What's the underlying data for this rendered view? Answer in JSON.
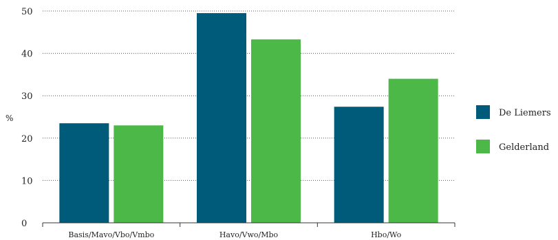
{
  "chart_data": {
    "type": "bar",
    "ylabel": "%",
    "ylim": [
      0,
      50
    ],
    "yticks": [
      0,
      10,
      20,
      30,
      40,
      50
    ],
    "grid": "horizontal-dotted",
    "legend_position": "right",
    "categories": [
      "Basis/Mavo/Vbo/Vmbo",
      "Havo/Vwo/Mbo",
      "Hbo/Wo"
    ],
    "series": [
      {
        "name": "De Liemers",
        "color": "#005a7a",
        "values": [
          23.5,
          49.5,
          27.4
        ]
      },
      {
        "name": "Gelderland",
        "color": "#4cb848",
        "values": [
          23.0,
          43.3,
          34.0
        ]
      }
    ]
  }
}
